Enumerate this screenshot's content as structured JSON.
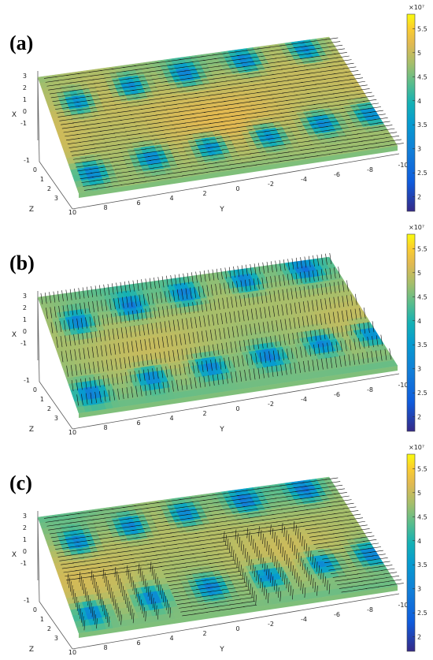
{
  "chart_data": [
    {
      "type": "heatmap",
      "label": "(a)",
      "xlabel": "X",
      "ylabel": "Y",
      "zlabel": "Z",
      "x_ticks": [
        "3",
        "2",
        "1",
        "0",
        "-1"
      ],
      "y_ticks": [
        "10",
        "8",
        "6",
        "4",
        "2",
        "0",
        "-2",
        "-4",
        "-6",
        "-8",
        "-10"
      ],
      "z_ticks": [
        "-1",
        "0",
        "1",
        "2",
        "3"
      ],
      "colorbar": {
        "ticks": [
          "5.5",
          "5",
          "4.5",
          "4",
          "3.5",
          "3",
          "2.5",
          "2"
        ],
        "exponent": "×10⁷",
        "range": [
          1.7,
          5.8
        ]
      },
      "arrow_style": "horizontal"
    },
    {
      "type": "heatmap",
      "label": "(b)",
      "xlabel": "X",
      "ylabel": "Y",
      "zlabel": "Z",
      "x_ticks": [
        "3",
        "2",
        "1",
        "0",
        "-1"
      ],
      "y_ticks": [
        "10",
        "8",
        "6",
        "4",
        "2",
        "0",
        "-2",
        "-4",
        "-6",
        "-8",
        "-10"
      ],
      "z_ticks": [
        "-1",
        "0",
        "1",
        "2",
        "3"
      ],
      "colorbar": {
        "ticks": [
          "5.5",
          "5",
          "4.5",
          "4",
          "3.5",
          "3",
          "2.5",
          "2"
        ],
        "exponent": "×10⁷",
        "range": [
          1.7,
          5.8
        ]
      },
      "arrow_style": "vertical"
    },
    {
      "type": "heatmap",
      "label": "(c)",
      "xlabel": "X",
      "ylabel": "Y",
      "zlabel": "Z",
      "x_ticks": [
        "3",
        "2",
        "1",
        "0",
        "-1"
      ],
      "y_ticks": [
        "10",
        "8",
        "6",
        "4",
        "2",
        "0",
        "-2",
        "-4",
        "-6",
        "-8",
        "-10"
      ],
      "z_ticks": [
        "-1",
        "0",
        "1",
        "2",
        "3"
      ],
      "colorbar": {
        "ticks": [
          "5.5",
          "5",
          "4.5",
          "4",
          "3.5",
          "3",
          "2.5",
          "2"
        ],
        "exponent": "×10⁷",
        "range": [
          1.7,
          5.8
        ]
      },
      "arrow_style": "mixed"
    }
  ],
  "colors": {
    "low": "#3a2a9a",
    "mid_blue": "#2f8fe0",
    "cyan": "#2ab7c9",
    "green": "#5cc46a",
    "yellow_green": "#a8c83a",
    "orange": "#e6b030",
    "yellow": "#f8f020"
  }
}
